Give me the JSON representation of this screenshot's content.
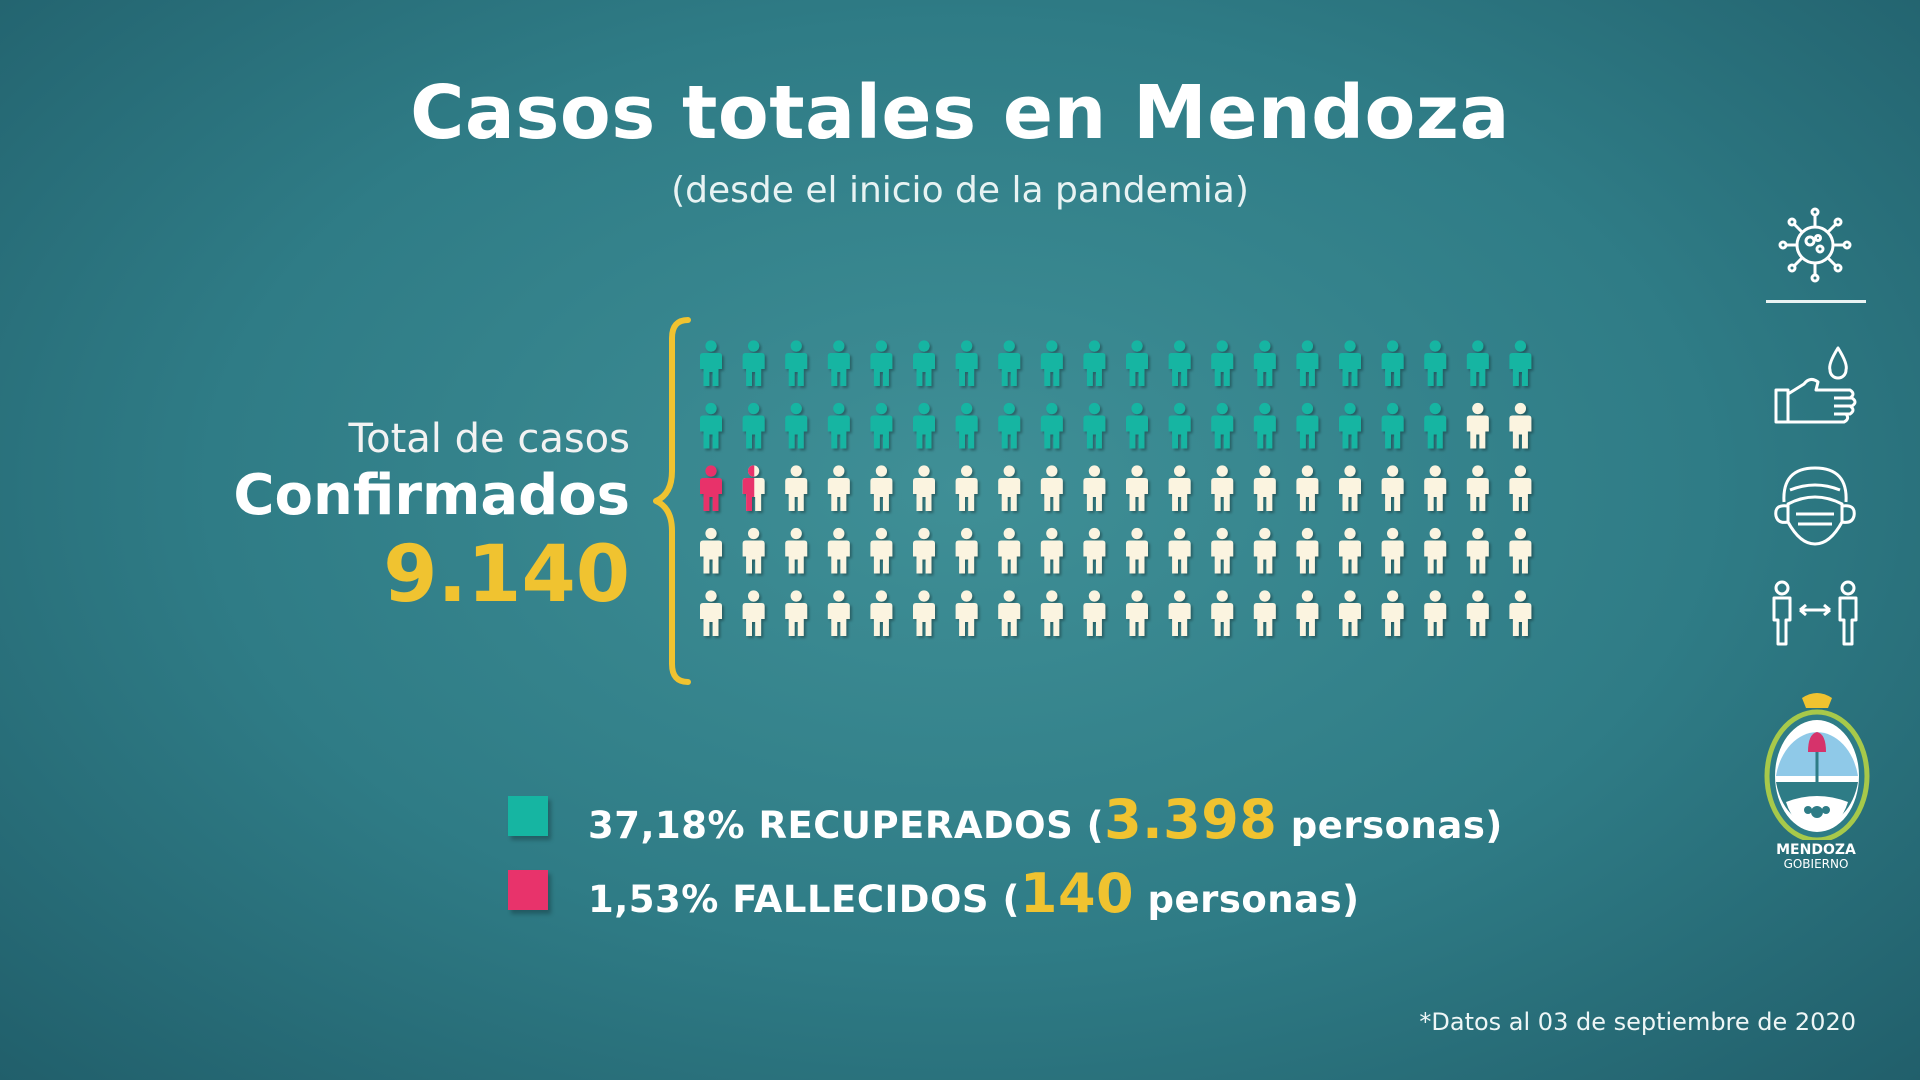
{
  "title": "Casos totales en Mendoza",
  "subtitle": "(desde el inicio de la pandemia)",
  "label": {
    "line1": "Total de casos",
    "line2": "Confirmados",
    "total": "9.140"
  },
  "legend": {
    "recovered": {
      "prefix": "37,18% RECUPERADOS (",
      "number": "3.398",
      "suffix": " personas)",
      "color": "#16b5a2"
    },
    "deceased": {
      "prefix": "1,53% FALLECIDOS (",
      "number": "140",
      "suffix": " personas)",
      "color": "#e8336b"
    }
  },
  "footnote": "*Datos al 03 de septiembre de 2020",
  "logo": {
    "line1": "MENDOZA",
    "line2": "GOBIERNO"
  },
  "colors": {
    "accent": "#f0c330",
    "recovered": "#16b5a2",
    "deceased": "#e8336b",
    "other": "#fbf4e0"
  },
  "side_icons": [
    "virus-icon",
    "handwash-icon",
    "face-mask-icon",
    "social-distance-icon"
  ],
  "chart_data": {
    "type": "pictogram",
    "total_cases": 9140,
    "rows": 5,
    "cols": 20,
    "series": [
      {
        "name": "RECUPERADOS",
        "percent": 37.18,
        "value": 3398,
        "color": "#16b5a2"
      },
      {
        "name": "FALLECIDOS",
        "percent": 1.53,
        "value": 140,
        "color": "#e8336b"
      }
    ],
    "remaining_color": "#fbf4e0"
  }
}
